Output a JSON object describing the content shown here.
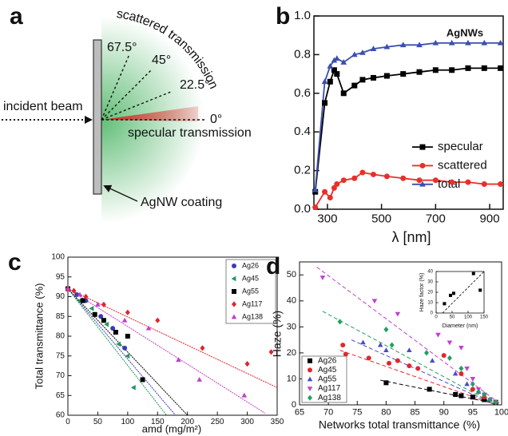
{
  "diagram": {
    "label": "a",
    "scattered": "scattered transmission",
    "angle_1": "67.5°",
    "angle_2": "45°",
    "angle_3": "22.5°",
    "angle_4": "0°",
    "incident": "incident beam",
    "specular": "specular transmission",
    "coating": "AgNW coating"
  },
  "chart_data": [
    {
      "type": "line",
      "label": "b",
      "title": "AgNWs",
      "x_label": "λ [nm]",
      "x": [
        255,
        290,
        310,
        325,
        335,
        360,
        400,
        430,
        470,
        520,
        580,
        640,
        700,
        760,
        820,
        880,
        940
      ],
      "xlim": [
        250,
        950
      ],
      "xticks": [
        300,
        500,
        700,
        900
      ],
      "ylim": [
        0,
        1
      ],
      "yticks": [
        {
          "value": 0,
          "label": "0.0"
        },
        0.2,
        0.4,
        0.6,
        0.8,
        {
          "value": 1,
          "label": "1.0"
        }
      ],
      "legend": "center-right",
      "series": [
        {
          "name": "specular",
          "color": "#000000",
          "marker": "square",
          "values": [
            0.09,
            0.55,
            0.66,
            0.72,
            0.7,
            0.6,
            0.64,
            0.67,
            0.68,
            0.69,
            0.7,
            0.71,
            0.72,
            0.72,
            0.73,
            0.73,
            0.73
          ]
        },
        {
          "name": "scattered",
          "color": "#e8302a",
          "marker": "circle",
          "values": [
            0.01,
            0.09,
            0.06,
            0.11,
            0.13,
            0.15,
            0.16,
            0.19,
            0.18,
            0.17,
            0.16,
            0.15,
            0.15,
            0.14,
            0.14,
            0.13,
            0.13
          ]
        },
        {
          "name": "total",
          "color": "#3a4fb0",
          "marker": "triangle",
          "values": [
            0.1,
            0.66,
            0.74,
            0.77,
            0.78,
            0.76,
            0.8,
            0.81,
            0.83,
            0.84,
            0.85,
            0.85,
            0.86,
            0.86,
            0.86,
            0.86,
            0.86
          ]
        }
      ]
    },
    {
      "type": "scatter",
      "label": "c",
      "x_label": "amd (mg/m²)",
      "y_label": "Total transmittance (%)",
      "xlim": [
        0,
        350
      ],
      "xticks": [
        0,
        50,
        100,
        150,
        200,
        250,
        300,
        350
      ],
      "ylim": [
        60,
        100
      ],
      "yticks": [
        60,
        65,
        70,
        75,
        80,
        85,
        90,
        95,
        100
      ],
      "legend": "top-right",
      "series": [
        {
          "name": "Ag26",
          "color": "#3b3bb5",
          "marker": "circle",
          "x": [
            0,
            15,
            30,
            55,
            75,
            95
          ],
          "values": [
            92,
            90.5,
            89,
            85,
            82,
            77
          ],
          "fit_x": [
            0,
            180
          ],
          "fit_y": [
            92,
            60
          ]
        },
        {
          "name": "Ag45",
          "color": "#1b9a5a",
          "marker": "triangle-left",
          "x": [
            0,
            20,
            40,
            65,
            85,
            100,
            110
          ],
          "values": [
            92,
            89,
            87,
            83,
            78,
            75,
            67
          ],
          "fit_x": [
            0,
            165
          ],
          "fit_y": [
            92,
            60
          ]
        },
        {
          "name": "Ag55",
          "color": "#000000",
          "marker": "square",
          "x": [
            0,
            25,
            45,
            60,
            80,
            100,
            125
          ],
          "values": [
            92,
            89,
            85.5,
            84,
            81,
            80,
            69
          ],
          "fit_x": [
            0,
            200
          ],
          "fit_y": [
            92,
            60
          ]
        },
        {
          "name": "Ag117",
          "color": "#e0242c",
          "marker": "diamond",
          "x": [
            0,
            10,
            30,
            60,
            100,
            150,
            225,
            300,
            340
          ],
          "values": [
            92,
            91.5,
            90,
            88,
            86,
            84,
            77,
            73,
            76
          ],
          "fit_x": [
            0,
            350
          ],
          "fit_y": [
            92,
            67
          ]
        },
        {
          "name": "Ag138",
          "color": "#c23fc8",
          "marker": "triangle",
          "x": [
            0,
            20,
            50,
            95,
            135,
            185,
            220,
            295
          ],
          "values": [
            92,
            90.5,
            88,
            84,
            82,
            74,
            69,
            65
          ],
          "fit_x": [
            0,
            330
          ],
          "fit_y": [
            92,
            60.5
          ]
        }
      ]
    },
    {
      "type": "scatter",
      "label": "d",
      "x_label": "Networks total transmittance (%)",
      "y_label": "Haze (%)",
      "xlim": [
        65,
        100
      ],
      "xticks": [
        65,
        70,
        75,
        80,
        85,
        90,
        95,
        100
      ],
      "ylim": [
        0,
        55
      ],
      "yticks": [
        0,
        10,
        20,
        30,
        40,
        50
      ],
      "legend": "bottom-left",
      "series": [
        {
          "name": "Ag26",
          "color": "#000000",
          "marker": "square",
          "x": [
            80,
            87.5,
            92,
            93,
            95,
            97,
            99
          ],
          "values": [
            8.5,
            6,
            4,
            3.5,
            3,
            2,
            1
          ],
          "fit_x": [
            79,
            99
          ],
          "fit_y": [
            9.5,
            0.5
          ]
        },
        {
          "name": "Ag45",
          "color": "#e3262e",
          "marker": "circle",
          "x": [
            72.5,
            73,
            77,
            80.5,
            82,
            84,
            85.5,
            90,
            93,
            95,
            97,
            99
          ],
          "values": [
            23,
            19.5,
            18,
            16,
            17,
            15,
            14,
            19,
            12,
            6,
            3,
            1
          ],
          "fit_x": [
            72,
            99
          ],
          "fit_y": [
            21,
            0
          ]
        },
        {
          "name": "Ag55",
          "color": "#4a4ad0",
          "marker": "triangle",
          "x": [
            76,
            79,
            80,
            84,
            88,
            92,
            94,
            96,
            98
          ],
          "values": [
            24,
            23,
            21,
            21,
            17,
            12,
            8,
            5,
            2
          ],
          "fit_x": [
            74,
            99
          ],
          "fit_y": [
            25,
            0
          ]
        },
        {
          "name": "Ag117",
          "color": "#c040d0",
          "marker": "triangle-down",
          "x": [
            69,
            78,
            82,
            89,
            91,
            93,
            94,
            95,
            96,
            97,
            98,
            99
          ],
          "values": [
            49,
            40,
            35,
            27,
            24,
            22,
            14,
            10,
            6,
            4,
            2,
            1
          ],
          "fit_x": [
            68,
            100
          ],
          "fit_y": [
            53,
            0
          ]
        },
        {
          "name": "Ag138",
          "color": "#22a060",
          "marker": "diamond",
          "x": [
            72,
            80,
            81,
            87,
            91,
            93,
            95,
            96,
            97,
            98,
            99
          ],
          "values": [
            32,
            29,
            23,
            20,
            18,
            14,
            8,
            5,
            4,
            2,
            1
          ],
          "fit_x": [
            69,
            99
          ],
          "fit_y": [
            36,
            0
          ]
        }
      ]
    },
    {
      "type": "scatter",
      "x_label": "Diameter (nm)",
      "y_label": "Haze factor (%)",
      "xlim": [
        0,
        150
      ],
      "xticks": [
        0,
        50,
        100,
        150
      ],
      "ylim": [
        0,
        40
      ],
      "yticks": [
        0,
        10,
        20,
        30,
        40
      ],
      "series": [
        {
          "color": "#000000",
          "marker": "square",
          "x": [
            26,
            45,
            55,
            117,
            138
          ],
          "values": [
            9,
            17,
            19,
            38,
            22
          ],
          "fit_x": [
            20,
            150
          ],
          "fit_y": [
            0,
            40
          ]
        }
      ]
    }
  ]
}
